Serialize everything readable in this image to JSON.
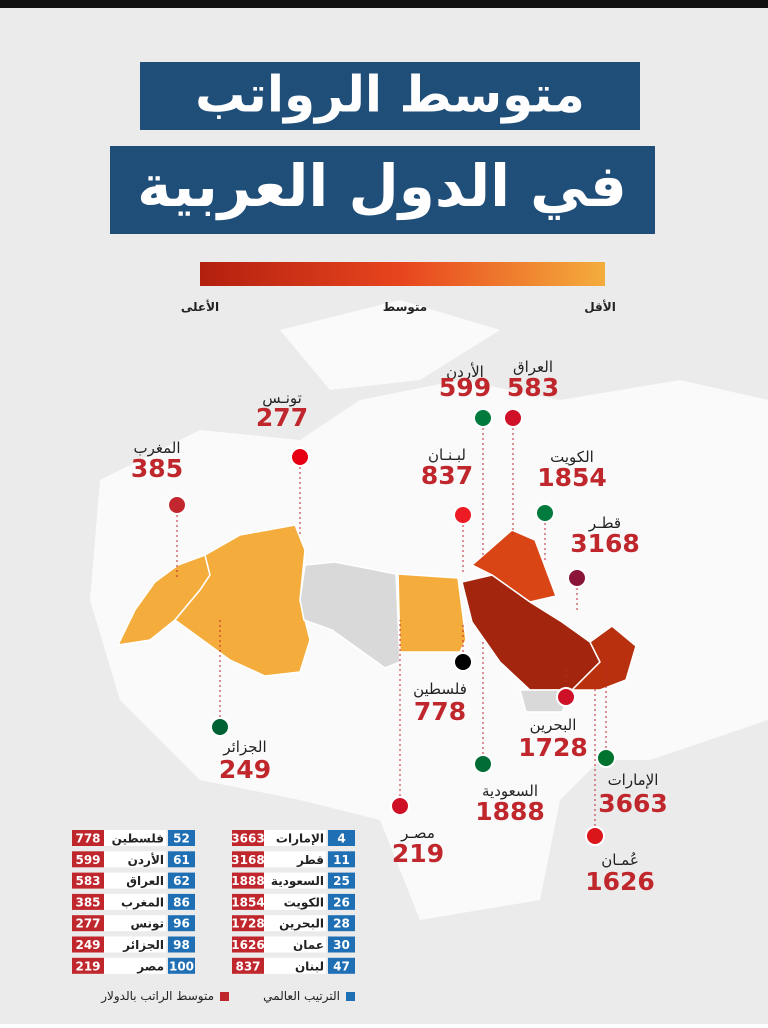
{
  "header": {
    "title_line1": "متوسط الرواتب",
    "title_line2": "في الدول العربية"
  },
  "scale": {
    "high": "الأعلى",
    "mid": "متوسط",
    "low": "الأقل"
  },
  "countries": [
    {
      "map_label": "المغرب",
      "table_label": "المغرب",
      "salary": 385,
      "rank": 86
    },
    {
      "map_label": "تونـس",
      "table_label": "تونس",
      "salary": 277,
      "rank": 96
    },
    {
      "map_label": "الأردن",
      "table_label": "الأردن",
      "salary": 599,
      "rank": 61
    },
    {
      "map_label": "العراق",
      "table_label": "العراق",
      "salary": 583,
      "rank": 62
    },
    {
      "map_label": "لبـنـان",
      "table_label": "لبنان",
      "salary": 837,
      "rank": 47
    },
    {
      "map_label": "الكويت",
      "table_label": "الكويت",
      "salary": 1854,
      "rank": 26
    },
    {
      "map_label": "قطـر",
      "table_label": "قطر",
      "salary": 3168,
      "rank": 11
    },
    {
      "map_label": "فلسطين",
      "table_label": "فلسطين",
      "salary": 778,
      "rank": 52
    },
    {
      "map_label": "الجزائر",
      "table_label": "الجزائر",
      "salary": 249,
      "rank": 98
    },
    {
      "map_label": "البحرين",
      "table_label": "البحرين",
      "salary": 1728,
      "rank": 28
    },
    {
      "map_label": "السعودية",
      "table_label": "السعودية",
      "salary": 1888,
      "rank": 25
    },
    {
      "map_label": "الإمارات",
      "table_label": "الإمارات",
      "salary": 3663,
      "rank": 4
    },
    {
      "map_label": "مصـر",
      "table_label": "مصر",
      "salary": 219,
      "rank": 100
    },
    {
      "map_label": "عُمـان",
      "table_label": "عمان",
      "salary": 1626,
      "rank": 30
    }
  ],
  "legend": {
    "salary": "متوسط الراتب بالدولار",
    "rank": "الترتيب العالمي"
  }
}
